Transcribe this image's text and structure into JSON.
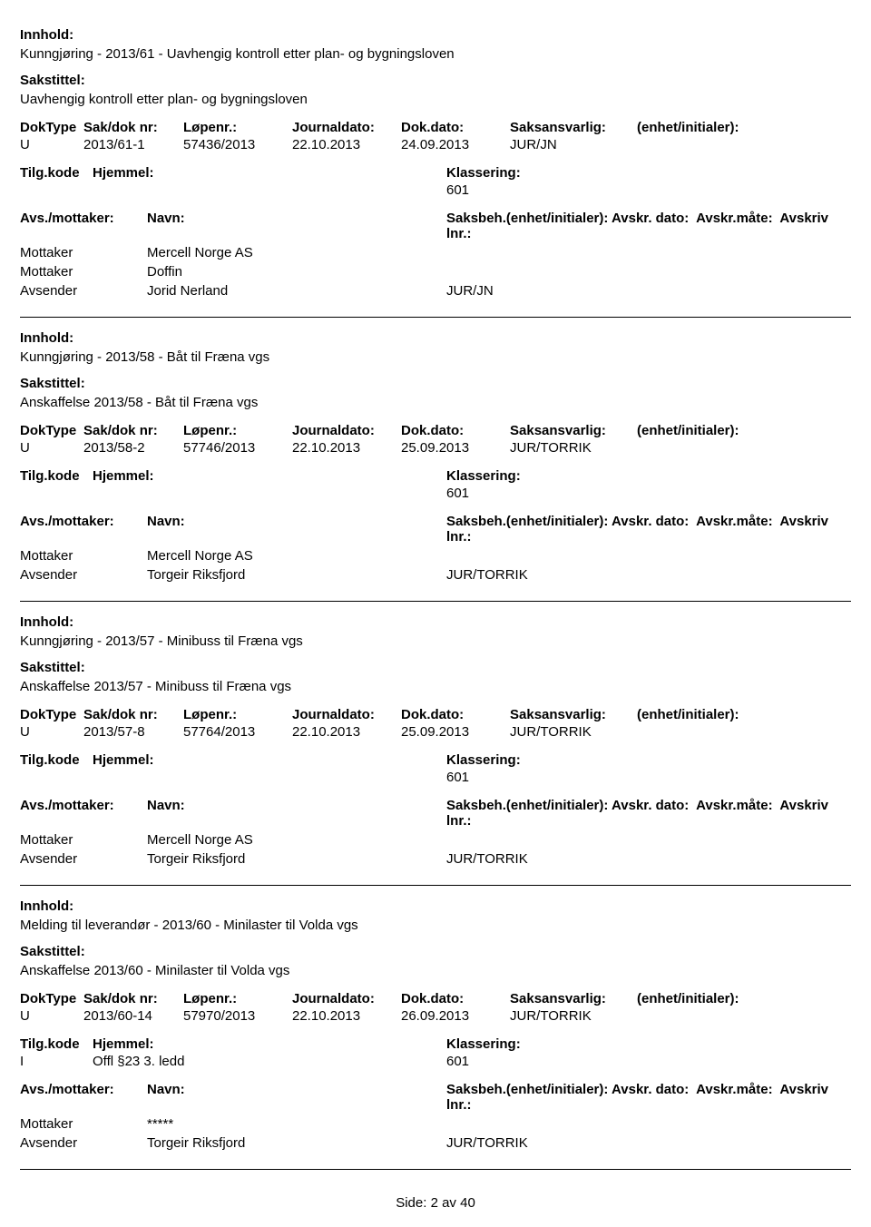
{
  "labels": {
    "innhold": "Innhold:",
    "sakstittel": "Sakstittel:",
    "doktype": "DokType",
    "saknr": "Sak/dok nr:",
    "lopenr": "Løpenr.:",
    "journaldato": "Journaldato:",
    "dokdato": "Dok.dato:",
    "saksansvarlig": "Saksansvarlig:",
    "enhet": "(enhet/initialer):",
    "tilgkode": "Tilg.kode",
    "hjemmel": "Hjemmel:",
    "klassering": "Klassering:",
    "avsmottaker": "Avs./mottaker:",
    "navn": "Navn:",
    "saksbeh": "Saksbeh.(enhet/initialer):",
    "avskrdato": "Avskr. dato:",
    "avskrmate": "Avskr.måte:",
    "avskrivlnr": "Avskriv lnr.:"
  },
  "records": [
    {
      "innhold": "Kunngjøring - 2013/61 - Uavhengig kontroll etter plan- og bygningsloven",
      "sakstittel": "Uavhengig kontroll etter plan- og bygningsloven",
      "doktype": "U",
      "saknr": "2013/61-1",
      "lopenr": "57436/2013",
      "journaldato": "22.10.2013",
      "dokdato": "24.09.2013",
      "saksansvarlig": "JUR/JN",
      "tilgkode": "",
      "hjemmel": "",
      "klassering": "601",
      "parties": [
        {
          "role": "Mottaker",
          "name": "Mercell Norge AS",
          "beh": ""
        },
        {
          "role": "Mottaker",
          "name": "Doffin",
          "beh": ""
        },
        {
          "role": "Avsender",
          "name": "Jorid Nerland",
          "beh": "JUR/JN"
        }
      ]
    },
    {
      "innhold": "Kunngjøring - 2013/58 - Båt til Fræna vgs",
      "sakstittel": "Anskaffelse 2013/58 - Båt til Fræna vgs",
      "doktype": "U",
      "saknr": "2013/58-2",
      "lopenr": "57746/2013",
      "journaldato": "22.10.2013",
      "dokdato": "25.09.2013",
      "saksansvarlig": "JUR/TORRIK",
      "tilgkode": "",
      "hjemmel": "",
      "klassering": "601",
      "parties": [
        {
          "role": "Mottaker",
          "name": "Mercell Norge AS",
          "beh": ""
        },
        {
          "role": "Avsender",
          "name": "Torgeir Riksfjord",
          "beh": "JUR/TORRIK"
        }
      ]
    },
    {
      "innhold": "Kunngjøring - 2013/57 - Minibuss til Fræna vgs",
      "sakstittel": "Anskaffelse 2013/57 - Minibuss til Fræna vgs",
      "doktype": "U",
      "saknr": "2013/57-8",
      "lopenr": "57764/2013",
      "journaldato": "22.10.2013",
      "dokdato": "25.09.2013",
      "saksansvarlig": "JUR/TORRIK",
      "tilgkode": "",
      "hjemmel": "",
      "klassering": "601",
      "parties": [
        {
          "role": "Mottaker",
          "name": "Mercell Norge AS",
          "beh": ""
        },
        {
          "role": "Avsender",
          "name": "Torgeir Riksfjord",
          "beh": "JUR/TORRIK"
        }
      ]
    },
    {
      "innhold": "Melding til leverandør - 2013/60 - Minilaster til Volda vgs",
      "sakstittel": "Anskaffelse 2013/60 - Minilaster til Volda vgs",
      "doktype": "U",
      "saknr": "2013/60-14",
      "lopenr": "57970/2013",
      "journaldato": "22.10.2013",
      "dokdato": "26.09.2013",
      "saksansvarlig": "JUR/TORRIK",
      "tilgkode": "I",
      "hjemmel": "Offl §23 3. ledd",
      "klassering": "601",
      "parties": [
        {
          "role": "Mottaker",
          "name": "*****",
          "beh": ""
        },
        {
          "role": "Avsender",
          "name": "Torgeir Riksfjord",
          "beh": "JUR/TORRIK"
        }
      ]
    }
  ],
  "footer": {
    "prefix": "Side:",
    "page": "2",
    "sep": "av",
    "total": "40"
  }
}
